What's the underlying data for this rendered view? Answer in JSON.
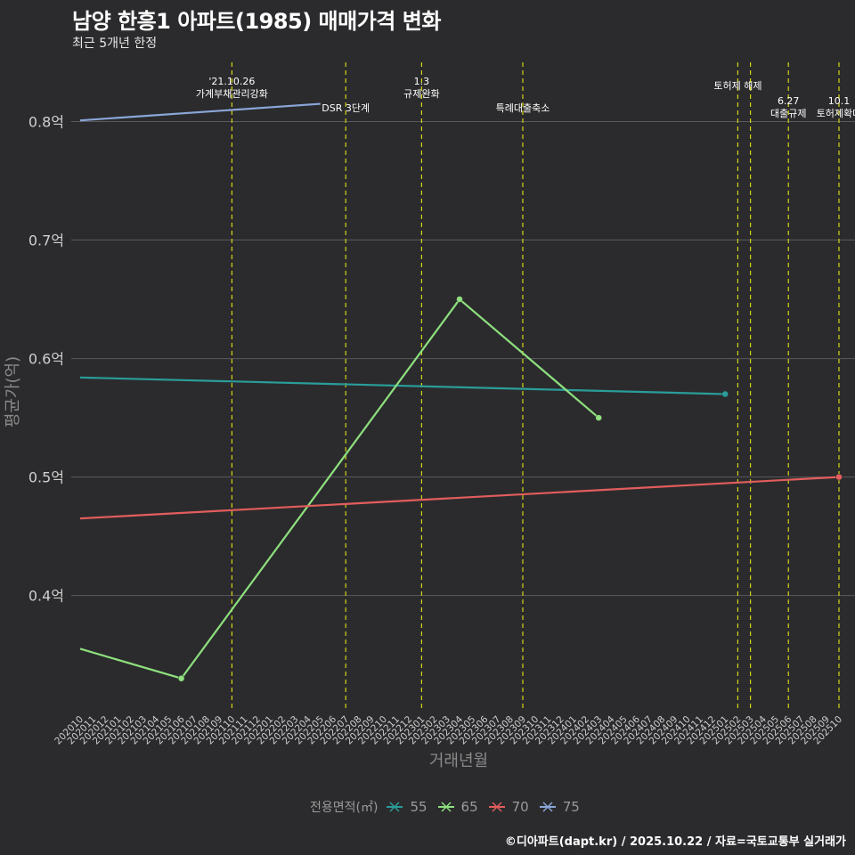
{
  "title": "남양 한흥1 아파트(1985) 매매가격 변화",
  "subtitle": "최근 5개년 한정",
  "caption": "©디아파트(dapt.kr) / 2025.10.22 / 자료=국토교통부 실거래가",
  "colors": {
    "background": "#2b2b2d",
    "grid": "#5a5a5c",
    "event_line": "#d4d417",
    "axis_text": "#cfcfcf"
  },
  "chart_data": {
    "type": "line",
    "xlabel": "거래년월",
    "ylabel": "평균가(억)",
    "ylim": [
      0.305,
      0.85
    ],
    "yticks": [
      0.4,
      0.5,
      0.6,
      0.7,
      0.8
    ],
    "ytick_labels": [
      "0.4억",
      "0.5억",
      "0.6억",
      "0.7억",
      "0.8억"
    ],
    "xticks": [
      "202010",
      "202011",
      "202012",
      "202101",
      "202102",
      "202103",
      "202104",
      "202105",
      "202106",
      "202107",
      "202108",
      "202109",
      "202110",
      "202111",
      "202112",
      "202201",
      "202202",
      "202203",
      "202204",
      "202205",
      "202206",
      "202207",
      "202208",
      "202209",
      "202210",
      "202211",
      "202212",
      "202301",
      "202302",
      "202303",
      "202304",
      "202305",
      "202306",
      "202307",
      "202308",
      "202309",
      "202310",
      "202311",
      "202312",
      "202401",
      "202402",
      "202403",
      "202404",
      "202405",
      "202406",
      "202407",
      "202408",
      "202409",
      "202410",
      "202411",
      "202412",
      "202501",
      "202502",
      "202503",
      "202504",
      "202505",
      "202506",
      "202507",
      "202508",
      "202509",
      "202510"
    ],
    "legend_title": "전용면적(㎡)",
    "series": [
      {
        "name": "55",
        "color": "#2a9d9a",
        "points": [
          {
            "x": "202010",
            "y": 0.584
          },
          {
            "x": "202501",
            "y": 0.57
          }
        ],
        "markers": [
          "202501"
        ]
      },
      {
        "name": "65",
        "color": "#8ee07e",
        "points": [
          {
            "x": "202010",
            "y": 0.355
          },
          {
            "x": "202106",
            "y": 0.33
          },
          {
            "x": "202304",
            "y": 0.65
          },
          {
            "x": "202403",
            "y": 0.55
          }
        ],
        "markers": [
          "202106",
          "202304",
          "202403"
        ]
      },
      {
        "name": "70",
        "color": "#e35d5d",
        "points": [
          {
            "x": "202010",
            "y": 0.465
          },
          {
            "x": "202510",
            "y": 0.5
          }
        ],
        "markers": [
          "202510"
        ]
      },
      {
        "name": "75",
        "color": "#8aa6d8",
        "points": [
          {
            "x": "202010",
            "y": 0.801
          },
          {
            "x": "202205",
            "y": 0.815
          }
        ],
        "markers": []
      }
    ],
    "events": [
      {
        "x": "202110",
        "lines": [
          "'21.10.26",
          "가계부채관리강화"
        ],
        "row": 0
      },
      {
        "x": "202207",
        "lines": [
          "DSR 3단계"
        ],
        "row": 2
      },
      {
        "x": "202301",
        "lines": [
          "1.3",
          "규제완화"
        ],
        "row": 0
      },
      {
        "x": "202309",
        "lines": [
          "특례대출축소"
        ],
        "row": 2
      },
      {
        "x": "202502",
        "lines": [
          "토허제 해제"
        ],
        "row": 1
      },
      {
        "x": "202503",
        "lines": [],
        "row": 1
      },
      {
        "x": "202506",
        "lines": [
          "6.27",
          "대출규제"
        ],
        "row": 3
      },
      {
        "x": "202510",
        "lines": [
          "10.1",
          "토허제확대"
        ],
        "row": 3
      }
    ]
  }
}
